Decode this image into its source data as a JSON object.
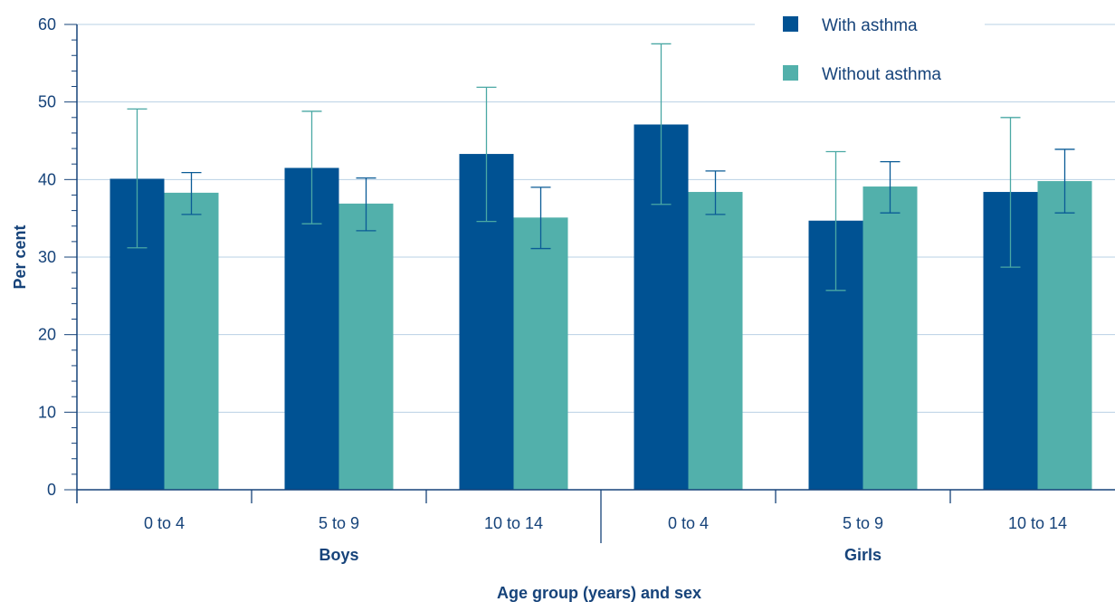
{
  "chart_data": {
    "type": "bar",
    "xlabel": "Age group (years) and sex",
    "ylabel": "Per cent",
    "ylim": [
      0,
      60
    ],
    "yticks": [
      "0",
      "10",
      "20",
      "30",
      "40",
      "50",
      "60"
    ],
    "grid": true,
    "legend_position": "top-right",
    "groups": [
      "Boys",
      "Girls"
    ],
    "categories": [
      "0 to 4",
      "5 to 9",
      "10 to 14",
      "0 to 4",
      "5 to 9",
      "10 to 14"
    ],
    "category_group": [
      0,
      0,
      0,
      1,
      1,
      1
    ],
    "series": [
      {
        "name": "With asthma",
        "color": "#005293",
        "whisker_color": "#4aa8a4",
        "values": [
          40.1,
          41.5,
          43.3,
          47.1,
          34.7,
          38.4
        ],
        "ci_low": [
          31.2,
          34.3,
          34.6,
          36.8,
          25.7,
          28.7
        ],
        "ci_high": [
          49.1,
          48.8,
          51.9,
          57.5,
          43.6,
          48.0
        ]
      },
      {
        "name": "Without asthma",
        "color": "#52b0ab",
        "whisker_color": "#0a5b96",
        "values": [
          38.3,
          36.9,
          35.1,
          38.4,
          39.1,
          39.8
        ],
        "ci_low": [
          35.5,
          33.4,
          31.1,
          35.5,
          35.7,
          35.7
        ],
        "ci_high": [
          40.9,
          40.2,
          39.0,
          41.1,
          42.3,
          43.9
        ]
      }
    ]
  }
}
